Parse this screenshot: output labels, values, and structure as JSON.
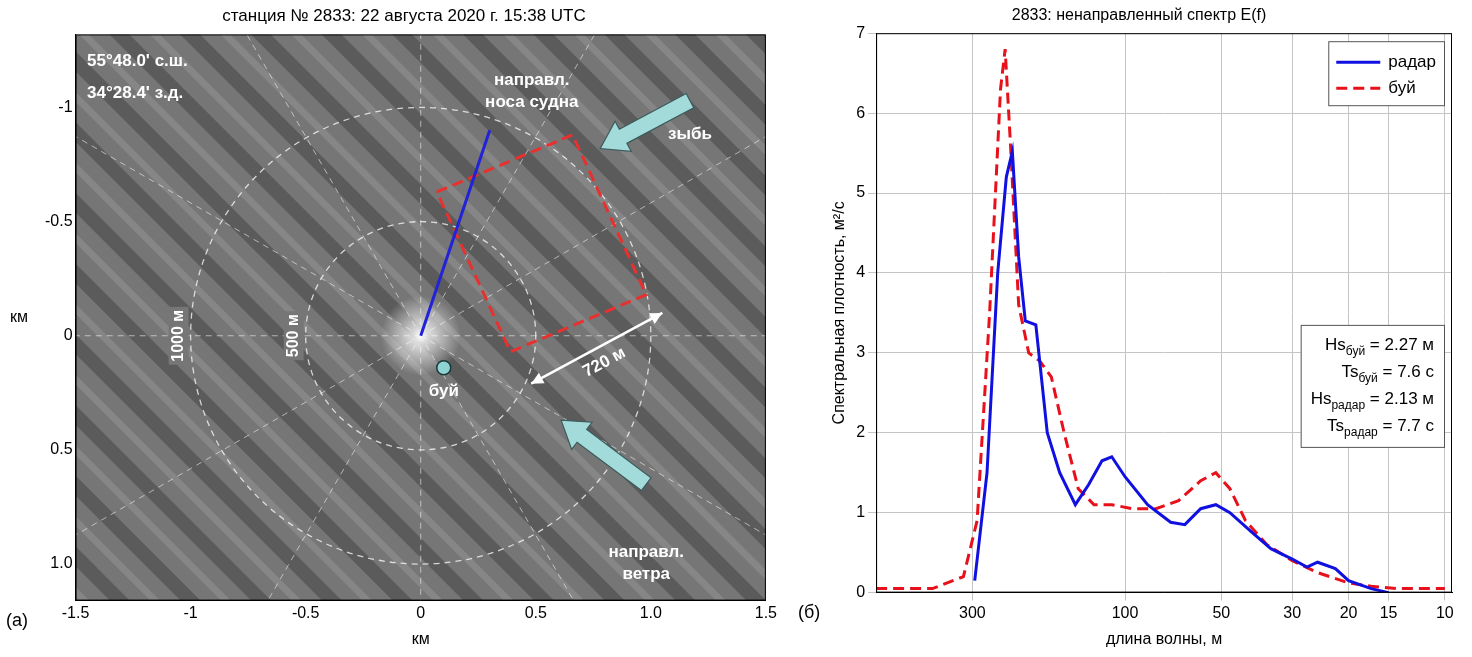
{
  "chart_data": [
    {
      "type": "scatter",
      "title": "станция № 2833: 22 августа 2020 г. 15:38 UTC",
      "panel": "(а)",
      "x_label": "км",
      "y_label": "км",
      "xlim": [
        -1.5,
        1.5
      ],
      "xticks": [
        -1.5,
        -1,
        -0.5,
        0,
        0.5,
        {
          "value": 1,
          "label": "1.0"
        },
        1.5
      ],
      "ylim": [
        1.16,
        -1.32
      ],
      "yticks": [
        -1,
        -0.5,
        0,
        0.5,
        {
          "value": 1,
          "label": "1.0"
        }
      ],
      "grid": false,
      "series": [
        {
          "name": "направл. носа судна",
          "color": "#2222d8",
          "line_style": "solid",
          "x": [
            0,
            0.3
          ],
          "values": [
            0,
            -0.9
          ]
        },
        {
          "color": "#e8312f",
          "line_style": "dashed",
          "x": [
            0.07,
            0.66,
            0.98,
            0.39,
            0.07
          ],
          "values": [
            -0.63,
            -0.88,
            -0.18,
            0.07,
            -0.63
          ]
        },
        {
          "name": "буй",
          "color": "#8fd3d3",
          "marker": "circle",
          "x": [
            0.1
          ],
          "values": [
            0.14
          ]
        }
      ],
      "rings": [
        {
          "radius": 0.5,
          "label": "500 м"
        },
        {
          "radius": 1,
          "label": "1000 м"
        }
      ],
      "arrows": [
        {
          "label": "зыбь",
          "color": "#a3dada",
          "from": [
            1.17,
            -1.03
          ],
          "to": [
            0.78,
            -0.82
          ]
        },
        {
          "label": "направл. ветра",
          "color": "#a3dada",
          "from": [
            0.98,
            0.65
          ],
          "to": [
            0.61,
            0.37
          ]
        }
      ],
      "dimension": {
        "label": "720 м",
        "x": [
          0.48,
          1.05
        ],
        "values": [
          0.21,
          -0.1
        ]
      },
      "annotations": [
        {
          "text": "55°48.0' с.ш.",
          "x": -1.45,
          "y": -1.2
        },
        {
          "text": "34°28.4' з.д.",
          "x": -1.45,
          "y": -1.06
        }
      ]
    },
    {
      "type": "line",
      "title": "2833: ненаправленный спектр E(f)",
      "panel": "(б)",
      "x_label": "длина волны, м",
      "y_label": "Спектральная плотность, м²/с",
      "log": "x",
      "xlim": [
        600,
        9.5
      ],
      "xticks": [
        300,
        100,
        50,
        30,
        20,
        15,
        10
      ],
      "ylim": [
        0,
        7
      ],
      "yticks": [
        0,
        1,
        2,
        3,
        4,
        5,
        6,
        7
      ],
      "grid": true,
      "legend": "upper right",
      "series": [
        {
          "name": "радар",
          "color": "#1010e0",
          "line_style": "solid",
          "x": [
            295,
            270,
            250,
            235,
            225,
            215,
            205,
            190,
            175,
            160,
            143,
            130,
            118,
            110,
            100,
            85,
            72,
            65,
            58,
            52,
            47,
            40,
            35,
            30,
            27,
            25,
            22,
            20,
            17,
            15
          ],
          "values": [
            0.15,
            1.5,
            4.0,
            5.2,
            5.52,
            4.2,
            3.4,
            3.35,
            2.0,
            1.5,
            1.1,
            1.35,
            1.65,
            1.7,
            1.45,
            1.1,
            0.88,
            0.85,
            1.05,
            1.1,
            1.0,
            0.75,
            0.55,
            0.42,
            0.32,
            0.38,
            0.3,
            0.15,
            0.05,
            0.0
          ]
        },
        {
          "name": "буй",
          "color": "#e8101a",
          "line_style": "dashed",
          "x": [
            600,
            400,
            320,
            290,
            265,
            245,
            237,
            228,
            215,
            200,
            185,
            170,
            155,
            140,
            125,
            110,
            95,
            80,
            68,
            58,
            52,
            47,
            42,
            36,
            30,
            25,
            20,
            17,
            14,
            10
          ],
          "values": [
            0.05,
            0.05,
            0.2,
            0.9,
            3.5,
            6.3,
            6.8,
            5.6,
            3.6,
            3.0,
            2.9,
            2.7,
            2.0,
            1.3,
            1.1,
            1.1,
            1.05,
            1.05,
            1.15,
            1.4,
            1.5,
            1.3,
            0.9,
            0.6,
            0.4,
            0.25,
            0.12,
            0.08,
            0.05,
            0.05
          ]
        }
      ],
      "stats": [
        {
          "symbol": "Hs",
          "index": "буй",
          "text": "= 2.27 м"
        },
        {
          "symbol": "Ts",
          "index": "буй",
          "text": "= 7.6 с"
        },
        {
          "symbol": "Hs",
          "index": "радар",
          "text": "= 2.13 м"
        },
        {
          "symbol": "Ts",
          "index": "радар",
          "text": "= 7.7 с"
        }
      ]
    }
  ]
}
